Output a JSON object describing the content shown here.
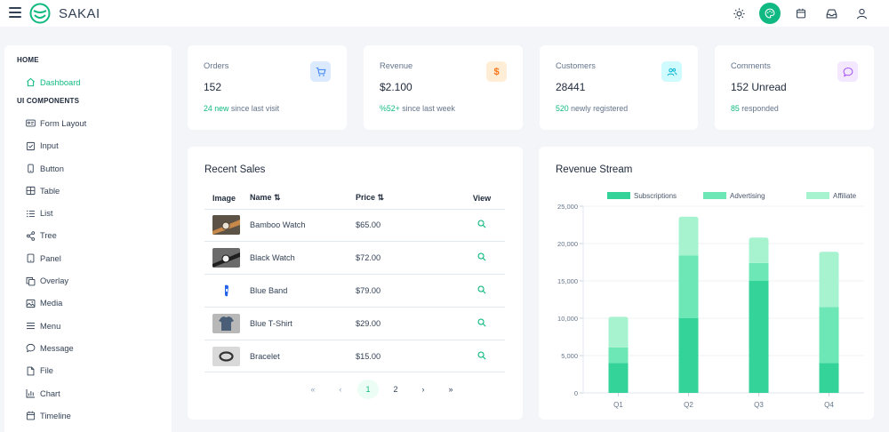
{
  "topbar": {
    "brand": "SAKAI",
    "icons": [
      "sun-icon",
      "palette-icon",
      "calendar-icon",
      "inbox-icon",
      "user-icon"
    ]
  },
  "sidebar": {
    "home_title": "HOME",
    "home_items": [
      {
        "label": "Dashboard",
        "icon": "home-icon"
      }
    ],
    "ui_title": "UI COMPONENTS",
    "ui_items": [
      {
        "label": "Form Layout",
        "icon": "id-card-icon"
      },
      {
        "label": "Input",
        "icon": "check-square-icon"
      },
      {
        "label": "Button",
        "icon": "mobile-icon"
      },
      {
        "label": "Table",
        "icon": "table-icon"
      },
      {
        "label": "List",
        "icon": "list-icon"
      },
      {
        "label": "Tree",
        "icon": "share-icon"
      },
      {
        "label": "Panel",
        "icon": "tablet-icon"
      },
      {
        "label": "Overlay",
        "icon": "clone-icon"
      },
      {
        "label": "Media",
        "icon": "image-icon"
      },
      {
        "label": "Menu",
        "icon": "bars-icon"
      },
      {
        "label": "Message",
        "icon": "comment-icon"
      },
      {
        "label": "File",
        "icon": "file-icon"
      },
      {
        "label": "Chart",
        "icon": "chart-bar-icon"
      },
      {
        "label": "Timeline",
        "icon": "calendar-icon"
      }
    ]
  },
  "stats": [
    {
      "label": "Orders",
      "value": "152",
      "highlight": "24 new",
      "sub": " since last visit",
      "icon": "cart-icon",
      "icon_color": "#3b82f6",
      "icon_bg": "#dbeafe"
    },
    {
      "label": "Revenue",
      "value": "$2.100",
      "highlight": "%52+",
      "sub": " since last week",
      "icon": "dollar-icon",
      "icon_color": "#f97316",
      "icon_bg": "#ffedd5"
    },
    {
      "label": "Customers",
      "value": "28441",
      "highlight": "520",
      "sub": " newly registered",
      "icon": "users-icon",
      "icon_color": "#06b6d4",
      "icon_bg": "#cffafe"
    },
    {
      "label": "Comments",
      "value": "152 Unread",
      "highlight": "85",
      "sub": " responded",
      "icon": "comment-icon",
      "icon_color": "#a855f7",
      "icon_bg": "#f3e8ff"
    }
  ],
  "sales": {
    "title": "Recent Sales",
    "headers": {
      "image": "Image",
      "name": "Name",
      "price": "Price",
      "view": "View"
    },
    "rows": [
      {
        "name": "Bamboo Watch",
        "price": "$65.00"
      },
      {
        "name": "Black Watch",
        "price": "$72.00"
      },
      {
        "name": "Blue Band",
        "price": "$79.00"
      },
      {
        "name": "Blue T-Shirt",
        "price": "$29.00"
      },
      {
        "name": "Bracelet",
        "price": "$15.00"
      }
    ],
    "pager": {
      "first": "«",
      "prev": "‹",
      "pages": [
        "1",
        "2"
      ],
      "next": "›",
      "last": "»"
    }
  },
  "revenue": {
    "title": "Revenue Stream"
  },
  "chart_data": {
    "type": "bar",
    "stacked": true,
    "categories": [
      "Q1",
      "Q2",
      "Q3",
      "Q4"
    ],
    "series": [
      {
        "name": "Subscriptions",
        "values": [
          4000,
          10000,
          15000,
          4000
        ],
        "color": "#34d399"
      },
      {
        "name": "Advertising",
        "values": [
          2100,
          8400,
          2400,
          7500
        ],
        "color": "#6ee7b7"
      },
      {
        "name": "Affiliate",
        "values": [
          4100,
          5200,
          3400,
          7400
        ],
        "color": "#a7f3d0"
      }
    ],
    "yticks": [
      "0",
      "5,000",
      "10,000",
      "15,000",
      "20,000",
      "25,000"
    ],
    "ylim": [
      0,
      25000
    ],
    "legend": "top"
  }
}
